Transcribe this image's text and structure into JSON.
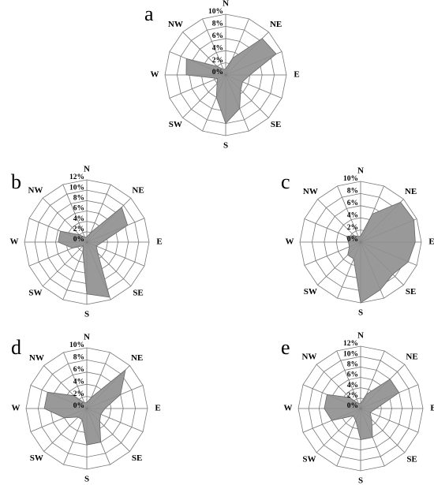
{
  "chart_data": [
    {
      "type": "radar",
      "panel_label": "a",
      "categories": [
        "N",
        null,
        "NE",
        null,
        "E",
        null,
        "SE",
        null,
        "S",
        null,
        "SW",
        null,
        "W",
        null,
        "NW",
        null
      ],
      "values": [
        1,
        3,
        8.5,
        9,
        4,
        3,
        3.5,
        6,
        8,
        4,
        2,
        1.5,
        6.5,
        7,
        2,
        1
      ],
      "color": "#999999",
      "ylim": [
        0,
        10
      ],
      "yticks": [
        {
          "value": 0,
          "label": "0%"
        },
        {
          "value": 2,
          "label": "2%"
        },
        {
          "value": 4,
          "label": "4%"
        },
        {
          "value": 6,
          "label": "6%"
        },
        {
          "value": 8,
          "label": "8%"
        },
        {
          "value": 10,
          "label": "10%"
        }
      ]
    },
    {
      "type": "radar",
      "panel_label": "b",
      "categories": [
        "N",
        null,
        "NE",
        null,
        "E",
        null,
        "SE",
        null,
        "S",
        null,
        "SW",
        null,
        "W",
        null,
        "NW",
        null
      ],
      "values": [
        1,
        2,
        9.5,
        8.5,
        3,
        2,
        3,
        11.5,
        10,
        2,
        1,
        3,
        5.5,
        5.5,
        2,
        1
      ],
      "color": "#999999",
      "ylim": [
        0,
        12
      ],
      "yticks": [
        {
          "value": 0,
          "label": "0%"
        },
        {
          "value": 2,
          "label": "2%"
        },
        {
          "value": 4,
          "label": "4%"
        },
        {
          "value": 6,
          "label": "6%"
        },
        {
          "value": 8,
          "label": "8%"
        },
        {
          "value": 10,
          "label": "10%"
        },
        {
          "value": 12,
          "label": "12%"
        }
      ]
    },
    {
      "type": "radar",
      "panel_label": "c",
      "categories": [
        "N",
        null,
        "NE",
        null,
        "E",
        null,
        "SE",
        null,
        "S",
        null,
        "SW",
        null,
        "W",
        null,
        "NW",
        null
      ],
      "values": [
        1,
        5,
        9.3,
        9.5,
        9,
        8.5,
        7.5,
        8.5,
        10,
        3,
        3,
        2,
        2,
        2.5,
        1.5,
        1
      ],
      "color": "#999999",
      "ylim": [
        0,
        10
      ],
      "yticks": [
        {
          "value": 0,
          "label": "0%"
        },
        {
          "value": 2,
          "label": "2%"
        },
        {
          "value": 4,
          "label": "4%"
        },
        {
          "value": 6,
          "label": "6%"
        },
        {
          "value": 8,
          "label": "8%"
        },
        {
          "value": 10,
          "label": "10%"
        }
      ]
    },
    {
      "type": "radar",
      "panel_label": "d",
      "categories": [
        "N",
        null,
        "NE",
        null,
        "E",
        null,
        "SE",
        null,
        "S",
        null,
        "SW",
        null,
        "W",
        null,
        "NW",
        null
      ],
      "values": [
        1,
        2,
        9,
        6,
        3,
        2.5,
        3,
        6,
        6,
        2,
        2,
        4,
        7,
        7,
        3,
        1
      ],
      "color": "#999999",
      "ylim": [
        0,
        10
      ],
      "yticks": [
        {
          "value": 0,
          "label": "0%"
        },
        {
          "value": 2,
          "label": "2%"
        },
        {
          "value": 4,
          "label": "4%"
        },
        {
          "value": 6,
          "label": "6%"
        },
        {
          "value": 8,
          "label": "8%"
        },
        {
          "value": 10,
          "label": "10%"
        }
      ]
    },
    {
      "type": "radar",
      "panel_label": "e",
      "categories": [
        "N",
        null,
        "NE",
        null,
        "E",
        null,
        "SE",
        null,
        "S",
        null,
        "SW",
        null,
        "W",
        null,
        "NW",
        null
      ],
      "values": [
        1,
        3,
        8,
        8,
        3,
        2,
        3,
        6,
        6,
        2.5,
        2,
        6,
        7,
        7,
        3,
        1
      ],
      "color": "#999999",
      "ylim": [
        0,
        12
      ],
      "yticks": [
        {
          "value": 0,
          "label": "0%"
        },
        {
          "value": 2,
          "label": "2%"
        },
        {
          "value": 4,
          "label": "4%"
        },
        {
          "value": 6,
          "label": "6%"
        },
        {
          "value": 8,
          "label": "8%"
        },
        {
          "value": 10,
          "label": "10%"
        },
        {
          "value": 12,
          "label": "12%"
        }
      ]
    }
  ]
}
